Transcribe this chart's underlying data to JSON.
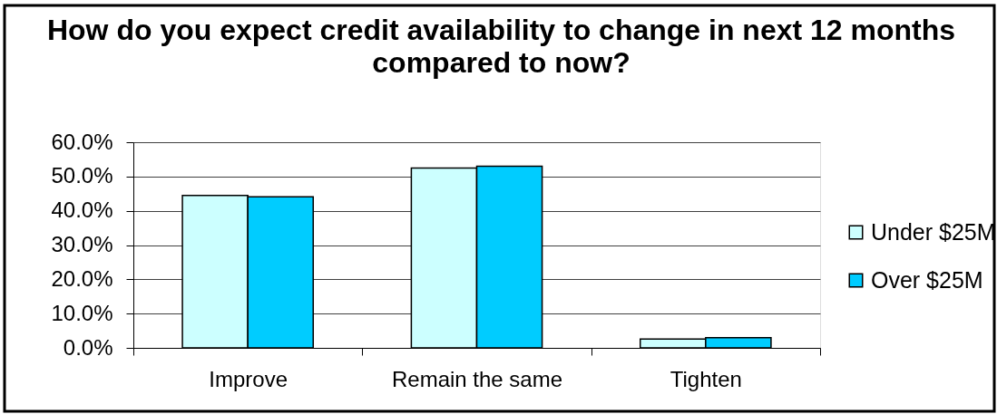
{
  "chart_data": {
    "type": "bar",
    "title": "How do you expect credit availability to change in next 12 months compared to now?",
    "categories": [
      "Improve",
      "Remain the same",
      "Tighten"
    ],
    "series": [
      {
        "name": "Under $25M",
        "color": "#ccffff",
        "values": [
          44.5,
          52.5,
          2.6
        ]
      },
      {
        "name": "Over $25M",
        "color": "#00ccff",
        "values": [
          44.1,
          53.0,
          3.0
        ]
      }
    ],
    "ylim": [
      0,
      60
    ],
    "yticks": [
      {
        "value": 0,
        "label": "0.0%"
      },
      {
        "value": 10,
        "label": "10.0%"
      },
      {
        "value": 20,
        "label": "20.0%"
      },
      {
        "value": 30,
        "label": "30.0%"
      },
      {
        "value": 40,
        "label": "40.0%"
      },
      {
        "value": 50,
        "label": "50.0%"
      },
      {
        "value": 60,
        "label": "60.0%"
      }
    ],
    "grid": "y",
    "legend": "right"
  }
}
